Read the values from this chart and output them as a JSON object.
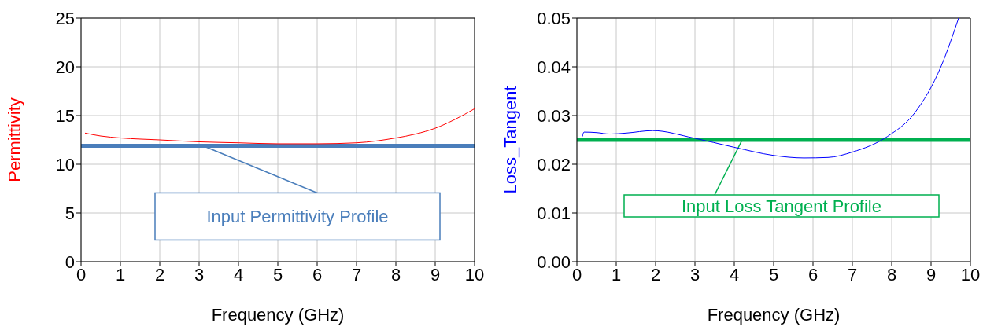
{
  "chart_data": [
    {
      "type": "line",
      "xlabel": "Frequency (GHz)",
      "ylabel": "Permittivity",
      "x": [
        0.1,
        0.5,
        1,
        2,
        3,
        4,
        5,
        6,
        7,
        8,
        8.5,
        9,
        9.5,
        10
      ],
      "series": [
        {
          "color": "#ff0000",
          "values": [
            13.2,
            12.9,
            12.7,
            12.5,
            12.3,
            12.2,
            12.1,
            12.1,
            12.2,
            12.7,
            13.1,
            13.7,
            14.6,
            15.7
          ]
        }
      ],
      "xlim": [
        0,
        10
      ],
      "xticks": [
        0,
        1,
        2,
        3,
        4,
        5,
        6,
        7,
        8,
        9,
        10
      ],
      "ylim": [
        0,
        25
      ],
      "yticks": [
        0,
        5,
        10,
        15,
        20,
        25
      ],
      "grid": true,
      "ref_lines": [
        {
          "axis": "y",
          "value": 11.9,
          "label": "Input Permittivity Profile",
          "color": "#4a7ebb"
        }
      ]
    },
    {
      "type": "line",
      "xlabel": "Frequency (GHz)",
      "ylabel": "Loss_Tangent",
      "x": [
        0.14,
        0.18,
        0.5,
        0.84,
        1.25,
        1.93,
        2.96,
        3.99,
        5.01,
        5.77,
        6.38,
        7,
        7.89,
        8.58,
        9.26,
        9.7
      ],
      "series": [
        {
          "color": "#0000ff",
          "values": [
            0.0257,
            0.0266,
            0.0265,
            0.0262,
            0.0264,
            0.0269,
            0.0254,
            0.0235,
            0.0218,
            0.0213,
            0.0214,
            0.0225,
            0.0257,
            0.0305,
            0.0402,
            0.05
          ]
        }
      ],
      "xlim": [
        0,
        10
      ],
      "xticks": [
        0,
        1,
        2,
        3,
        4,
        5,
        6,
        7,
        8,
        9,
        10
      ],
      "ylim": [
        0,
        0.05
      ],
      "yticks": [
        {
          "value": 0,
          "label": "0.00"
        },
        0.01,
        0.02,
        0.03,
        0.04,
        0.05
      ],
      "grid": true,
      "ref_lines": [
        {
          "axis": "y",
          "value": 0.025,
          "label": "Input Loss Tangent Profile",
          "color": "#00b050"
        }
      ]
    }
  ]
}
